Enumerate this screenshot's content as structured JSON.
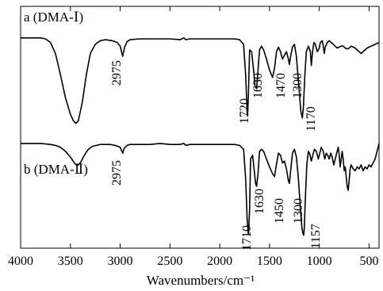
{
  "chart_data": {
    "type": "line",
    "xlabel": "Wavenumbers/cm⁻¹",
    "ylabel": "",
    "xlim": [
      4000,
      400
    ],
    "x_direction": "decreasing",
    "x_ticks": [
      "4000",
      "3500",
      "3000",
      "2500",
      "2000",
      "1500",
      "1000",
      "500"
    ],
    "y_ticks_shown": false,
    "grid": false,
    "series": [
      {
        "name": "a (DMA-Ⅰ)",
        "offset": "upper",
        "color": "#000000",
        "points": [
          [
            4000,
            0.95
          ],
          [
            3900,
            0.95
          ],
          [
            3800,
            0.95
          ],
          [
            3750,
            0.94
          ],
          [
            3700,
            0.9
          ],
          [
            3650,
            0.78
          ],
          [
            3600,
            0.55
          ],
          [
            3550,
            0.3
          ],
          [
            3500,
            0.12
          ],
          [
            3470,
            0.05
          ],
          [
            3445,
            0.02
          ],
          [
            3420,
            0.05
          ],
          [
            3380,
            0.25
          ],
          [
            3340,
            0.55
          ],
          [
            3300,
            0.78
          ],
          [
            3250,
            0.88
          ],
          [
            3200,
            0.92
          ],
          [
            3150,
            0.93
          ],
          [
            3080,
            0.92
          ],
          [
            3030,
            0.9
          ],
          [
            3000,
            0.86
          ],
          [
            2975,
            0.75
          ],
          [
            2955,
            0.85
          ],
          [
            2930,
            0.91
          ],
          [
            2900,
            0.93
          ],
          [
            2800,
            0.94
          ],
          [
            2700,
            0.94
          ],
          [
            2600,
            0.94
          ],
          [
            2500,
            0.94
          ],
          [
            2400,
            0.93
          ],
          [
            2360,
            0.95
          ],
          [
            2340,
            0.93
          ],
          [
            2300,
            0.94
          ],
          [
            2200,
            0.94
          ],
          [
            2100,
            0.94
          ],
          [
            2000,
            0.94
          ],
          [
            1900,
            0.94
          ],
          [
            1850,
            0.94
          ],
          [
            1800,
            0.93
          ],
          [
            1760,
            0.88
          ],
          [
            1740,
            0.55
          ],
          [
            1725,
            0.15
          ],
          [
            1720,
            0.1
          ],
          [
            1712,
            0.35
          ],
          [
            1700,
            0.82
          ],
          [
            1680,
            0.8
          ],
          [
            1660,
            0.6
          ],
          [
            1645,
            0.42
          ],
          [
            1630,
            0.4
          ],
          [
            1615,
            0.6
          ],
          [
            1600,
            0.82
          ],
          [
            1580,
            0.86
          ],
          [
            1560,
            0.82
          ],
          [
            1530,
            0.72
          ],
          [
            1500,
            0.6
          ],
          [
            1470,
            0.52
          ],
          [
            1450,
            0.62
          ],
          [
            1430,
            0.8
          ],
          [
            1410,
            0.85
          ],
          [
            1390,
            0.8
          ],
          [
            1370,
            0.72
          ],
          [
            1350,
            0.76
          ],
          [
            1330,
            0.8
          ],
          [
            1310,
            0.72
          ],
          [
            1300,
            0.66
          ],
          [
            1290,
            0.74
          ],
          [
            1270,
            0.85
          ],
          [
            1250,
            0.88
          ],
          [
            1230,
            0.75
          ],
          [
            1200,
            0.35
          ],
          [
            1185,
            0.15
          ],
          [
            1170,
            0.08
          ],
          [
            1160,
            0.2
          ],
          [
            1145,
            0.55
          ],
          [
            1130,
            0.8
          ],
          [
            1110,
            0.86
          ],
          [
            1090,
            0.8
          ],
          [
            1080,
            0.65
          ],
          [
            1070,
            0.78
          ],
          [
            1055,
            0.9
          ],
          [
            1040,
            0.88
          ],
          [
            1020,
            0.8
          ],
          [
            1000,
            0.84
          ],
          [
            990,
            0.9
          ],
          [
            970,
            0.92
          ],
          [
            960,
            0.86
          ],
          [
            950,
            0.78
          ],
          [
            940,
            0.85
          ],
          [
            920,
            0.9
          ],
          [
            900,
            0.92
          ],
          [
            880,
            0.9
          ],
          [
            860,
            0.88
          ],
          [
            840,
            0.86
          ],
          [
            820,
            0.84
          ],
          [
            800,
            0.85
          ],
          [
            780,
            0.86
          ],
          [
            760,
            0.86
          ],
          [
            740,
            0.84
          ],
          [
            720,
            0.83
          ],
          [
            700,
            0.84
          ],
          [
            680,
            0.86
          ],
          [
            660,
            0.85
          ],
          [
            640,
            0.84
          ],
          [
            620,
            0.82
          ],
          [
            600,
            0.8
          ],
          [
            580,
            0.78
          ],
          [
            560,
            0.8
          ],
          [
            540,
            0.82
          ],
          [
            520,
            0.84
          ],
          [
            500,
            0.85
          ],
          [
            480,
            0.86
          ],
          [
            460,
            0.87
          ],
          [
            440,
            0.88
          ],
          [
            420,
            0.89
          ],
          [
            400,
            0.9
          ]
        ],
        "peak_labels": [
          "2975",
          "1720",
          "1630",
          "1470",
          "1300",
          "1170"
        ]
      },
      {
        "name": "b (DMA-Ⅱ)",
        "offset": "lower",
        "color": "#000000",
        "points": [
          [
            4000,
            0.96
          ],
          [
            3900,
            0.96
          ],
          [
            3800,
            0.96
          ],
          [
            3700,
            0.95
          ],
          [
            3650,
            0.94
          ],
          [
            3600,
            0.92
          ],
          [
            3550,
            0.88
          ],
          [
            3500,
            0.82
          ],
          [
            3460,
            0.76
          ],
          [
            3440,
            0.74
          ],
          [
            3420,
            0.74
          ],
          [
            3400,
            0.76
          ],
          [
            3360,
            0.84
          ],
          [
            3320,
            0.9
          ],
          [
            3280,
            0.93
          ],
          [
            3200,
            0.95
          ],
          [
            3100,
            0.95
          ],
          [
            3050,
            0.94
          ],
          [
            3000,
            0.92
          ],
          [
            2975,
            0.86
          ],
          [
            2960,
            0.91
          ],
          [
            2930,
            0.94
          ],
          [
            2900,
            0.95
          ],
          [
            2800,
            0.95
          ],
          [
            2700,
            0.95
          ],
          [
            2600,
            0.96
          ],
          [
            2500,
            0.95
          ],
          [
            2400,
            0.95
          ],
          [
            2360,
            0.96
          ],
          [
            2340,
            0.94
          ],
          [
            2300,
            0.95
          ],
          [
            2200,
            0.95
          ],
          [
            2100,
            0.95
          ],
          [
            2000,
            0.95
          ],
          [
            1900,
            0.95
          ],
          [
            1850,
            0.95
          ],
          [
            1800,
            0.94
          ],
          [
            1760,
            0.9
          ],
          [
            1740,
            0.6
          ],
          [
            1725,
            0.2
          ],
          [
            1715,
            0.05
          ],
          [
            1710,
            0.03
          ],
          [
            1700,
            0.3
          ],
          [
            1690,
            0.8
          ],
          [
            1670,
            0.84
          ],
          [
            1655,
            0.7
          ],
          [
            1640,
            0.55
          ],
          [
            1630,
            0.52
          ],
          [
            1615,
            0.65
          ],
          [
            1600,
            0.88
          ],
          [
            1580,
            0.9
          ],
          [
            1560,
            0.88
          ],
          [
            1530,
            0.8
          ],
          [
            1500,
            0.72
          ],
          [
            1470,
            0.65
          ],
          [
            1450,
            0.62
          ],
          [
            1430,
            0.75
          ],
          [
            1410,
            0.86
          ],
          [
            1390,
            0.84
          ],
          [
            1370,
            0.76
          ],
          [
            1350,
            0.78
          ],
          [
            1330,
            0.7
          ],
          [
            1310,
            0.58
          ],
          [
            1300,
            0.55
          ],
          [
            1290,
            0.66
          ],
          [
            1270,
            0.86
          ],
          [
            1250,
            0.9
          ],
          [
            1230,
            0.82
          ],
          [
            1210,
            0.6
          ],
          [
            1190,
            0.3
          ],
          [
            1175,
            0.1
          ],
          [
            1165,
            0.04
          ],
          [
            1157,
            0.02
          ],
          [
            1150,
            0.1
          ],
          [
            1140,
            0.4
          ],
          [
            1125,
            0.75
          ],
          [
            1110,
            0.88
          ],
          [
            1095,
            0.85
          ],
          [
            1080,
            0.78
          ],
          [
            1065,
            0.84
          ],
          [
            1050,
            0.9
          ],
          [
            1030,
            0.88
          ],
          [
            1010,
            0.8
          ],
          [
            995,
            0.86
          ],
          [
            980,
            0.92
          ],
          [
            960,
            0.88
          ],
          [
            945,
            0.8
          ],
          [
            930,
            0.86
          ],
          [
            915,
            0.84
          ],
          [
            900,
            0.8
          ],
          [
            885,
            0.86
          ],
          [
            870,
            0.82
          ],
          [
            855,
            0.74
          ],
          [
            840,
            0.8
          ],
          [
            825,
            0.86
          ],
          [
            810,
            0.92
          ],
          [
            800,
            0.84
          ],
          [
            790,
            0.72
          ],
          [
            780,
            0.8
          ],
          [
            770,
            0.88
          ],
          [
            760,
            0.8
          ],
          [
            750,
            0.68
          ],
          [
            740,
            0.72
          ],
          [
            730,
            0.62
          ],
          [
            720,
            0.52
          ],
          [
            710,
            0.48
          ],
          [
            700,
            0.58
          ],
          [
            690,
            0.7
          ],
          [
            680,
            0.74
          ],
          [
            660,
            0.7
          ],
          [
            640,
            0.68
          ],
          [
            620,
            0.72
          ],
          [
            600,
            0.7
          ],
          [
            580,
            0.74
          ],
          [
            560,
            0.68
          ],
          [
            540,
            0.72
          ],
          [
            520,
            0.7
          ],
          [
            500,
            0.74
          ],
          [
            480,
            0.72
          ],
          [
            460,
            0.76
          ],
          [
            440,
            0.8
          ],
          [
            420,
            0.88
          ],
          [
            400,
            0.96
          ]
        ],
        "peak_labels": [
          "2975",
          "1710",
          "1630",
          "1450",
          "1300",
          "1157"
        ]
      }
    ]
  }
}
